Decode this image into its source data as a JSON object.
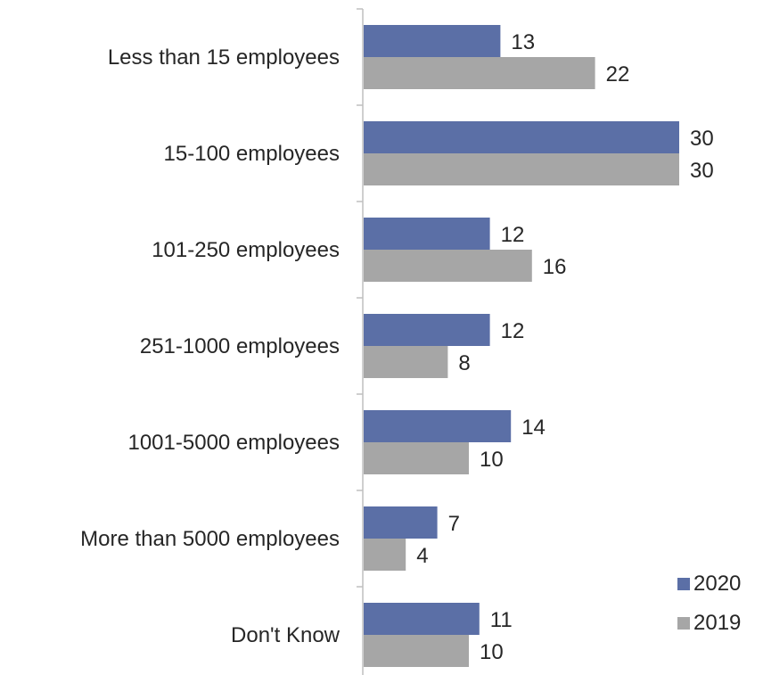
{
  "chart_data": {
    "type": "bar",
    "orientation": "horizontal",
    "categories": [
      "Less than 15 employees",
      "15-100 employees",
      "101-250 employees",
      "251-1000 employees",
      "1001-5000 employees",
      "More than 5000 employees",
      "Don't Know"
    ],
    "series": [
      {
        "name": "2020",
        "color": "#5b6fa6",
        "values": [
          13,
          30,
          12,
          12,
          14,
          7,
          11
        ]
      },
      {
        "name": "2019",
        "color": "#a6a6a6",
        "values": [
          22,
          30,
          16,
          8,
          10,
          4,
          10
        ]
      }
    ],
    "xlim": [
      0,
      30
    ],
    "grid": false,
    "legend_position": "bottom-right",
    "title": "",
    "xlabel": "",
    "ylabel": ""
  }
}
